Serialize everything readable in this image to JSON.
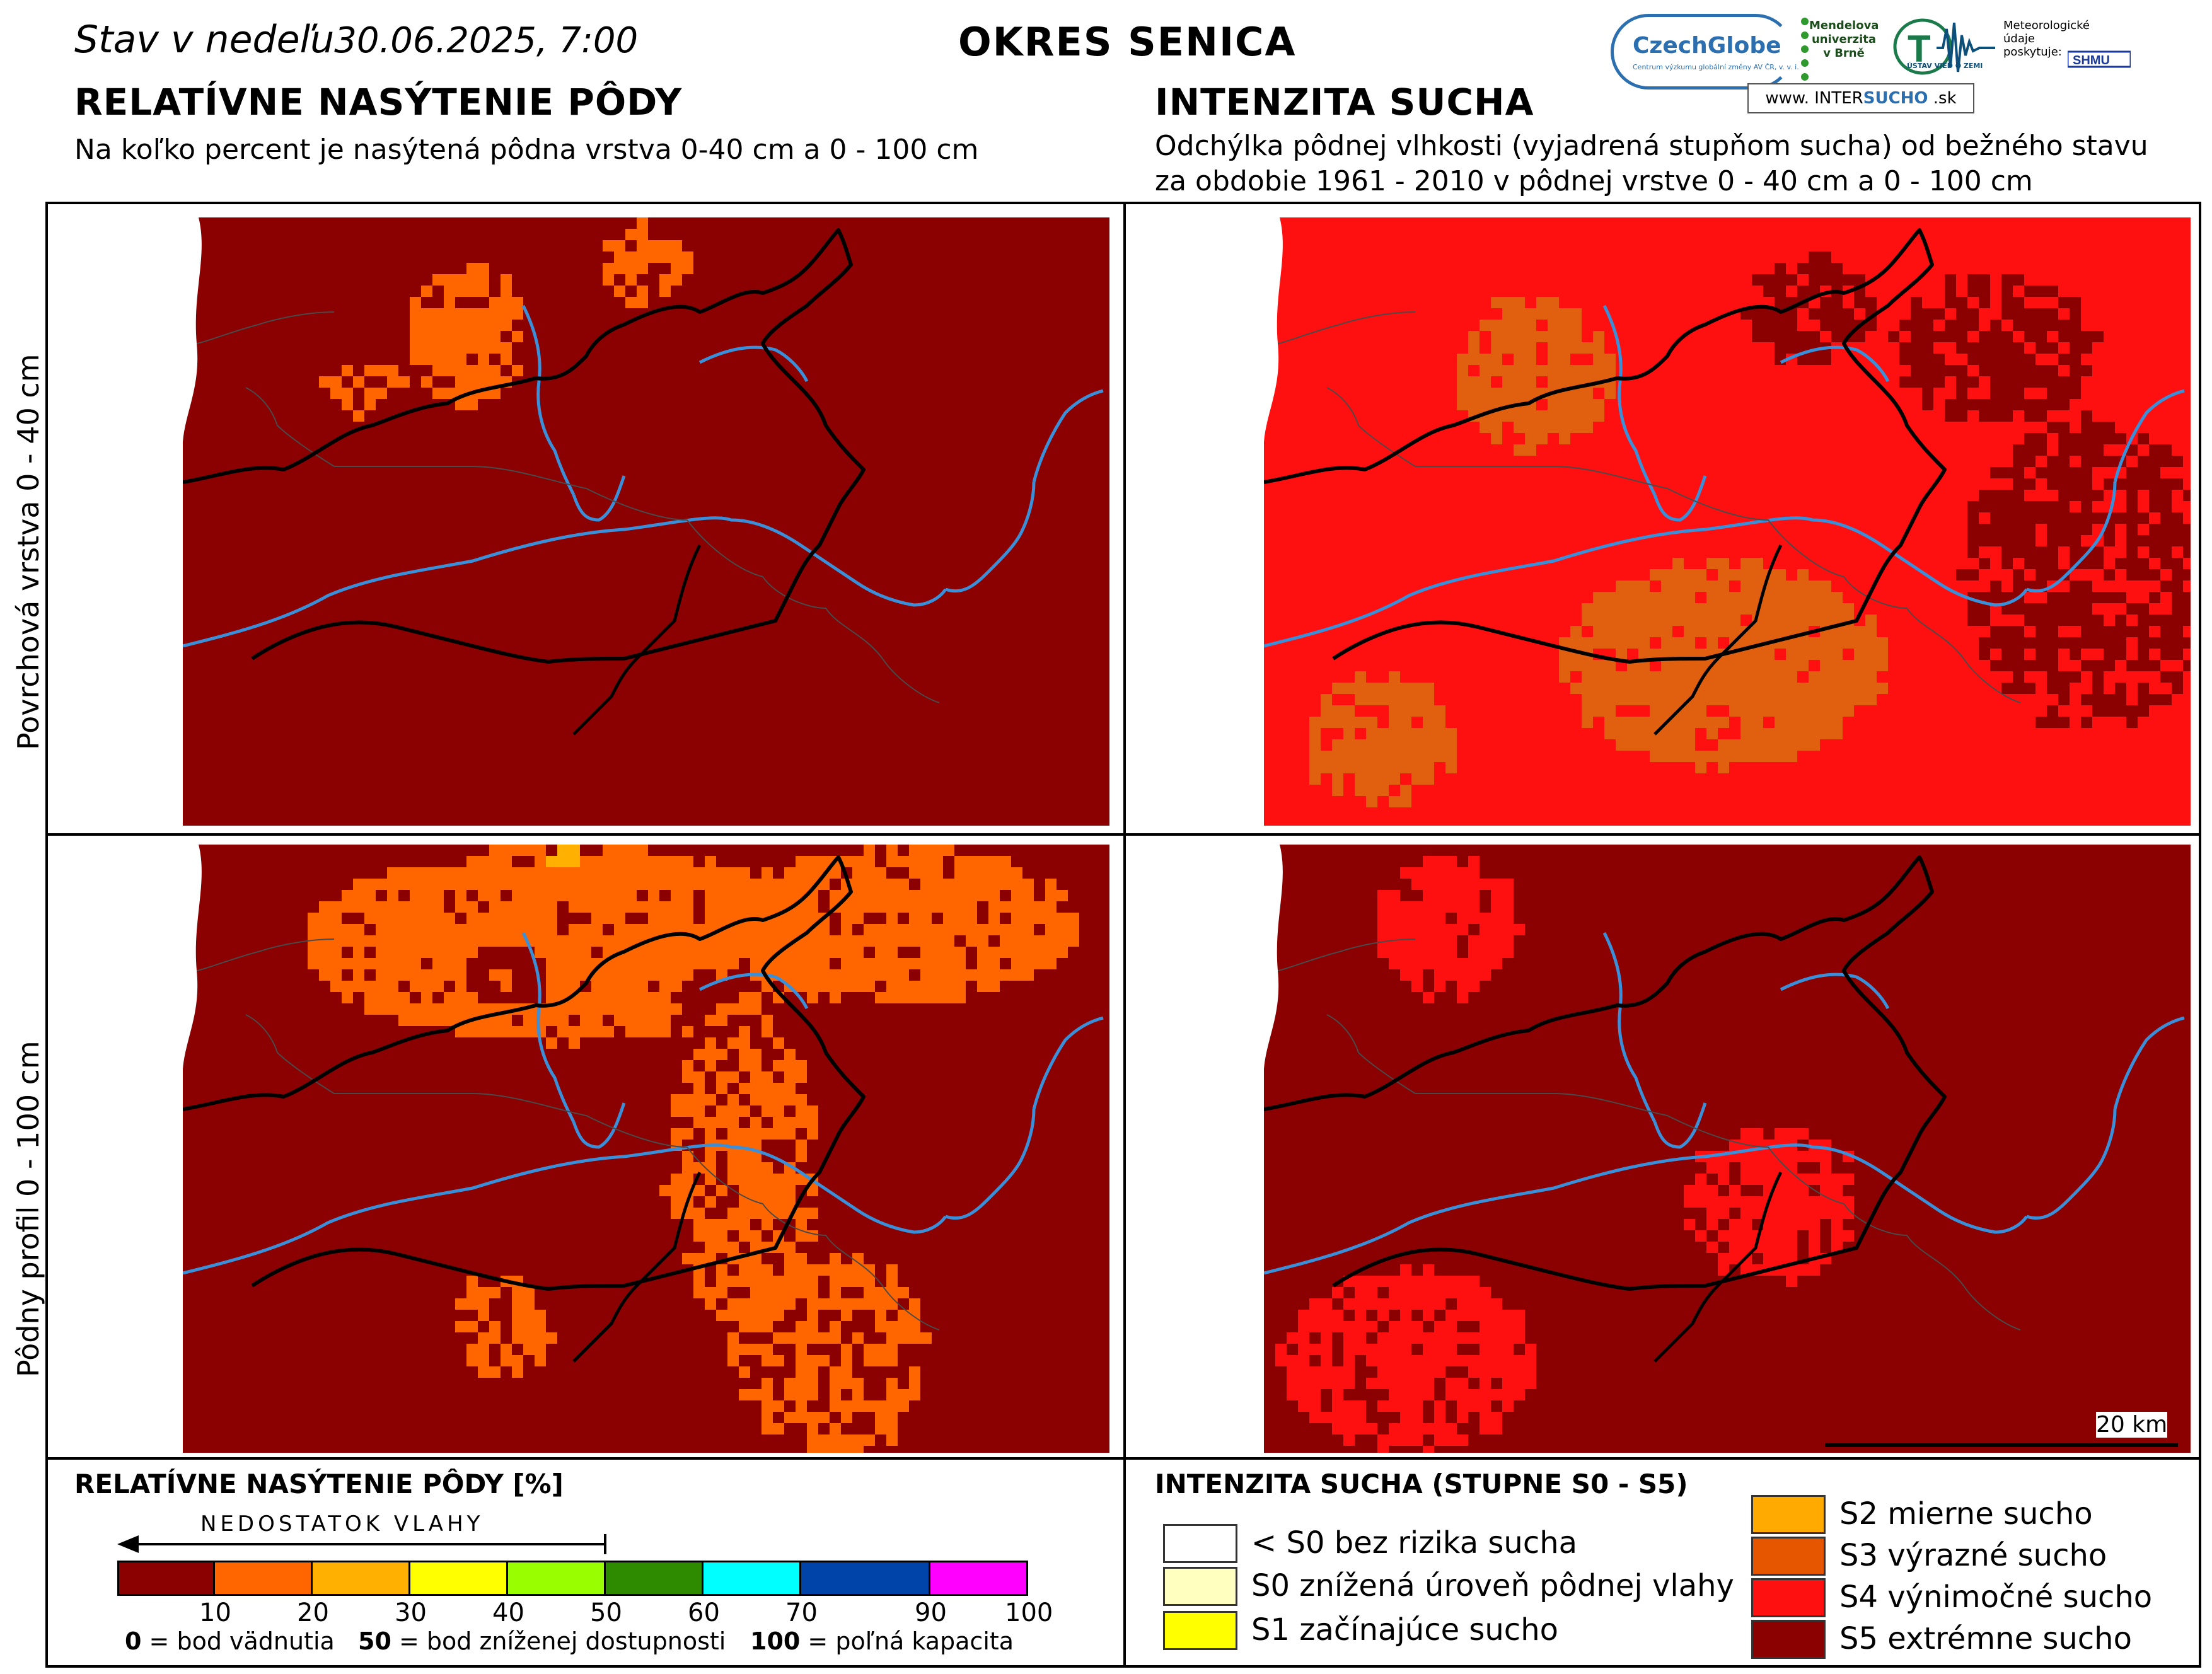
{
  "header": {
    "date_label": "Stav v nedeľu",
    "date_value": "30.06.2025, 7:00",
    "district": "OKRES  SENICA"
  },
  "logos": {
    "czechglobe": "CzechGlobe",
    "czechglobe_sub": "Centrum výzkumu globální změny AV ČR, v. v. i.",
    "mendel": "Mendelova univerzita v Brně",
    "ustav": "ÚSTAV VIED O ZEMI",
    "meteo": "Meteorologické údaje poskytuje:",
    "shmu": "SHMU",
    "intersucho_pre": "www. INTER",
    "intersucho_bold": "SUCHO",
    "intersucho_post": " .sk"
  },
  "left_section": {
    "title": "RELATÍVNE NASÝTENIE PÔDY",
    "subtitle": "Na koľko percent je nasýtená pôdna vrstva 0-40 cm a 0 - 100 cm"
  },
  "right_section": {
    "title": "INTENZITA SUCHA",
    "subtitle_line1": "Odchýlka pôdnej vlhkosti (vyjadrená stupňom sucha) od bežného stavu",
    "subtitle_line2": "za obdobie 1961 - 2010 v pôdnej vrstve 0 - 40 cm a 0 - 100 cm"
  },
  "rows": {
    "top": "Povrchová vrstva 0 - 40 cm",
    "bottom": "Pôdny profil 0 - 100 cm"
  },
  "scale_bar": "20 km",
  "saturation_legend": {
    "title": "RELATÍVNE NASÝTENIE PÔDY [%]",
    "arrow_label": "NEDOSTATOK VLAHY",
    "colors": [
      "#8b0000",
      "#ff6600",
      "#ffb000",
      "#ffff00",
      "#99ff00",
      "#2e8b00",
      "#00ffff",
      "#0044aa",
      "#ff00ff"
    ],
    "ticks": [
      "10",
      "20",
      "30",
      "40",
      "50",
      "60",
      "70",
      "90",
      "100"
    ],
    "note_0_val": "0",
    "note_0_text": " = bod vädnutia",
    "note_50_val": "50",
    "note_50_text": " = bod zníženej dostupnosti",
    "note_100_val": "100",
    "note_100_text": " = poľná kapacita"
  },
  "drought_legend": {
    "title": "INTENZITA SUCHA (STUPNE S0 - S5)",
    "items": [
      {
        "label": "< S0 bez rizika sucha",
        "color": "#ffffff"
      },
      {
        "label": "S0 znížená úroveň pôdnej vlahy",
        "color": "#ffffc0"
      },
      {
        "label": "S1 začínajúce sucho",
        "color": "#ffff00"
      },
      {
        "label": "S2 mierne sucho",
        "color": "#ffaa00"
      },
      {
        "label": "S3 výrazné sucho",
        "color": "#e65500"
      },
      {
        "label": "S4 výnimočné sucho",
        "color": "#ff1010"
      },
      {
        "label": "S5 extrémne sucho",
        "color": "#8b0000"
      }
    ]
  },
  "map_colors": {
    "dark_red": "#8b0000",
    "orange": "#ff6600",
    "red": "#ff1010",
    "brown_orange": "#e06010",
    "river": "#3a8fd8",
    "border": "#000000"
  }
}
